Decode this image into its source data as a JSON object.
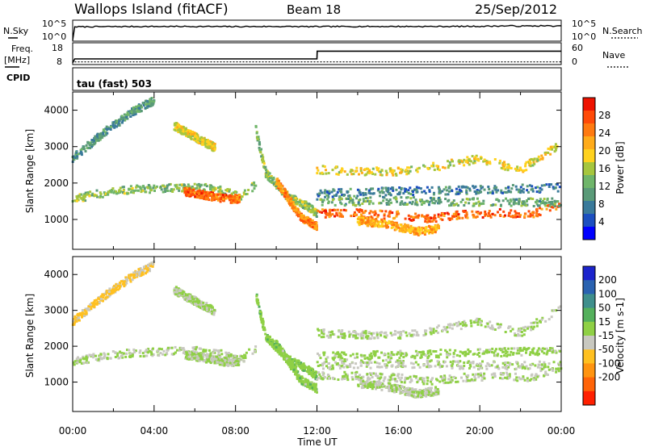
{
  "header": {
    "station": "Wallops Island (fitACF)",
    "beam": "Beam 18",
    "date": "25/Sep/2012"
  },
  "noise_panel": {
    "left_label": "N.Sky",
    "right_label": "N.Search",
    "left_ticks": [
      "10^5",
      "10^0"
    ],
    "right_ticks": [
      "10^5",
      "10^0"
    ]
  },
  "freq_panel": {
    "left_label_1": "Freq.",
    "left_label_2": "[MHz]",
    "right_label": "Nave",
    "left_ticks": [
      "18",
      "8"
    ],
    "right_ticks": [
      "60",
      "0"
    ]
  },
  "cpid": {
    "label": "CPID",
    "value": "tau (fast) 503"
  },
  "chart_data": [
    {
      "type": "line",
      "name": "noise",
      "x": [
        0,
        0.1,
        2,
        4,
        6,
        8,
        10,
        12,
        14,
        16,
        18,
        20,
        21.5,
        22,
        23,
        24
      ],
      "y_log10": [
        0,
        4.2,
        4.25,
        4.3,
        4.3,
        4.25,
        4.3,
        4.25,
        4.3,
        4.3,
        4.3,
        4.35,
        4.5,
        4.4,
        4.5,
        4.4
      ],
      "ylim": [
        "10^0",
        "10^5"
      ]
    },
    {
      "type": "line",
      "name": "frequency",
      "x": [
        0,
        0.1,
        12,
        12.01,
        24
      ],
      "values_mhz": [
        7.5,
        10.5,
        10.5,
        16.5,
        16.5
      ],
      "ylim": [
        8,
        18
      ],
      "nave": 5
    },
    {
      "type": "heatmap",
      "name": "power",
      "ylabel": "Slant Range [km]",
      "yticks": [
        "1000",
        "2000",
        "3000",
        "4000"
      ],
      "ylim": [
        180,
        4500
      ],
      "xlim": [
        0,
        24
      ],
      "colorbar": {
        "label": "Power [dB]",
        "ticks": [
          "28",
          "24",
          "20",
          "16",
          "12",
          "8",
          "4"
        ],
        "colors": [
          "#0000ff",
          "#1c4fc0",
          "#3a7a9a",
          "#5a9a78",
          "#6fb56a",
          "#a6c63e",
          "#ffd21e",
          "#ffab1a",
          "#ff7a10",
          "#ff4a08",
          "#ee1200"
        ]
      },
      "bands": [
        {
          "x": [
            0.0,
            1.5,
            3.0,
            5.0,
            6.5,
            7.5,
            8.3,
            9.0
          ],
          "y": [
            1600,
            1750,
            1850,
            1900,
            1900,
            1800,
            1650,
            2000
          ],
          "value": 14
        },
        {
          "x": [
            5.5,
            6.5,
            7.5,
            8.2
          ],
          "y": [
            1800,
            1700,
            1600,
            1600
          ],
          "value": 26
        },
        {
          "x": [
            0.0,
            1.5,
            3.0,
            4.0
          ],
          "y": [
            2700,
            3400,
            4000,
            4300
          ],
          "value": 10
        },
        {
          "x": [
            5.0,
            6.0,
            7.0
          ],
          "y": [
            3600,
            3300,
            3000
          ],
          "value": 18
        },
        {
          "x": [
            9.0,
            9.5,
            10.5,
            11.5,
            12.0
          ],
          "y": [
            3500,
            2300,
            1700,
            1400,
            1200
          ],
          "value": 14
        },
        {
          "x": [
            10.0,
            10.5,
            11.2,
            12.0
          ],
          "y": [
            2100,
            1700,
            1100,
            850
          ],
          "value": 24
        },
        {
          "x": [
            12.0,
            14.0,
            16.0,
            17.5,
            19.0,
            21.0,
            22.5,
            24.0
          ],
          "y": [
            1200,
            1200,
            1150,
            1050,
            1150,
            1200,
            1150,
            1450
          ],
          "value": 26
        },
        {
          "x": [
            12.0,
            14.0,
            16.0,
            18.0,
            20.0,
            22.0,
            24.0
          ],
          "y": [
            2400,
            2350,
            2350,
            2500,
            2700,
            2400,
            3100
          ],
          "value": 18
        },
        {
          "x": [
            14.0,
            15.5,
            17.0,
            18.0
          ],
          "y": [
            1000,
            900,
            700,
            800
          ],
          "value": 22
        },
        {
          "x": [
            12.0,
            16.0,
            20.0,
            24.0
          ],
          "y": [
            1500,
            1550,
            1500,
            1500
          ],
          "value": 12
        },
        {
          "x": [
            12.0,
            16.0,
            20.0,
            24.0
          ],
          "y": [
            1750,
            1800,
            1850,
            1900
          ],
          "value": 8
        }
      ]
    },
    {
      "type": "heatmap",
      "name": "velocity",
      "ylabel": "Slant Range [km]",
      "yticks": [
        "1000",
        "2000",
        "3000",
        "4000"
      ],
      "ylim": [
        180,
        4500
      ],
      "xlim": [
        0,
        24
      ],
      "colorbar": {
        "label": "Velocity [m s-1]",
        "ticks": [
          "200",
          "100",
          "50",
          "15",
          "-15",
          "-50",
          "-100",
          "-200"
        ],
        "colors": [
          "#1c24cc",
          "#2a62b0",
          "#3f8f8c",
          "#54b05c",
          "#8fd045",
          "#c8c8c0",
          "#ffc020",
          "#ff9410",
          "#ff6408",
          "#ff2000"
        ]
      },
      "bands": [
        {
          "x": [
            0.0,
            1.5,
            3.0,
            5.0,
            6.5,
            7.5,
            8.3,
            9.0
          ],
          "y": [
            1600,
            1750,
            1850,
            1900,
            1900,
            1800,
            1650,
            2000
          ],
          "value": 0
        },
        {
          "x": [
            5.5,
            6.5,
            7.5,
            8.2
          ],
          "y": [
            1800,
            1700,
            1600,
            1600
          ],
          "value": 0
        },
        {
          "x": [
            0.0,
            1.5,
            3.0,
            4.0
          ],
          "y": [
            2700,
            3400,
            4000,
            4300
          ],
          "value": -60
        },
        {
          "x": [
            5.0,
            6.0,
            7.0
          ],
          "y": [
            3600,
            3300,
            3000
          ],
          "value": 5
        },
        {
          "x": [
            9.0,
            9.5,
            10.5,
            11.5,
            12.0
          ],
          "y": [
            3500,
            2300,
            1700,
            1400,
            1200
          ],
          "value": 30
        },
        {
          "x": [
            10.0,
            10.5,
            11.2,
            12.0
          ],
          "y": [
            2100,
            1700,
            1100,
            850
          ],
          "value": 25
        },
        {
          "x": [
            12.0,
            14.0,
            16.0,
            17.5,
            19.0,
            21.0,
            22.5,
            24.0
          ],
          "y": [
            1200,
            1200,
            1150,
            1050,
            1150,
            1200,
            1150,
            1450
          ],
          "value": 0
        },
        {
          "x": [
            12.0,
            14.0,
            16.0,
            18.0,
            20.0,
            22.0,
            24.0
          ],
          "y": [
            2400,
            2350,
            2350,
            2500,
            2700,
            2400,
            3100
          ],
          "value": 0
        },
        {
          "x": [
            14.0,
            15.5,
            17.0,
            18.0
          ],
          "y": [
            1000,
            900,
            700,
            800
          ],
          "value": 0
        },
        {
          "x": [
            12.0,
            16.0,
            20.0,
            24.0
          ],
          "y": [
            1500,
            1550,
            1500,
            1500
          ],
          "value": 0
        },
        {
          "x": [
            12.0,
            16.0,
            20.0,
            24.0
          ],
          "y": [
            1750,
            1800,
            1850,
            1900
          ],
          "value": 20
        }
      ]
    }
  ],
  "xaxis": {
    "label": "Time UT",
    "ticks": [
      "00:00",
      "04:00",
      "08:00",
      "12:00",
      "16:00",
      "20:00",
      "00:00"
    ]
  }
}
